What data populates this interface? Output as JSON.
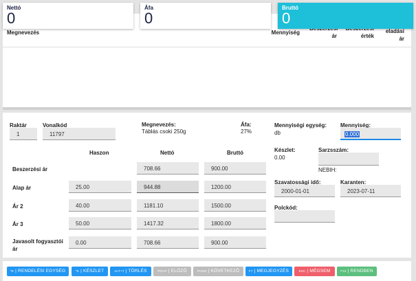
{
  "summary": {
    "netto_label": "Nettó",
    "netto_value": "0",
    "afa_label": "Áfa",
    "afa_value": "0",
    "brutto_label": "Bruttó",
    "brutto_value": "0",
    "accent_color": "#1ebfd9"
  },
  "table": {
    "headers": [
      "Megnevezés",
      "Mennyiség",
      "Beszerzési ár",
      "Beszerzési érték",
      "eladási ár"
    ]
  },
  "form": {
    "raktar_label": "Raktár",
    "raktar_value": "1",
    "vonalkod_label": "Vonalkód",
    "vonalkod_value": "11797",
    "megnevezes_label": "Megnevezés:",
    "megnevezes_value": "Táblás csoki 250g",
    "afa_label": "Áfa:",
    "afa_value": "27%",
    "col_haszon": "Haszon",
    "col_netto": "Nettó",
    "col_brutto": "Bruttó",
    "rows": [
      {
        "label": "Beszerzési ár",
        "haszon": null,
        "netto": "708.66",
        "brutto": "900.00"
      },
      {
        "label": "Alap ár",
        "haszon": "25.00",
        "netto": "944.88",
        "brutto": "1200.00"
      },
      {
        "label": "Ár 2",
        "haszon": "40.00",
        "netto": "1181.10",
        "brutto": "1500.00"
      },
      {
        "label": "Ár 3",
        "haszon": "50.00",
        "netto": "1417.32",
        "brutto": "1800.00"
      },
      {
        "label": "Javasolt fogyasztói ár",
        "haszon": "0.00",
        "netto": "708.66",
        "brutto": "900.00"
      }
    ],
    "mennyisegi_egyseg_label": "Mennyiségi egység:",
    "mennyisegi_egyseg_value": "db",
    "mennyiseg_label": "Mennyiség:",
    "mennyiseg_value": "0.000",
    "keszlet_label": "Készlet:",
    "keszlet_value": "0.00",
    "sarzsszam_label": "Sarzsszám:",
    "sarzsszam_value": "",
    "nebih_label": "NEBIH:",
    "szavatossagi_label": "Szavatossági idő:",
    "szavatossagi_value": "2000-01-01",
    "karanten_label": "Karanten:",
    "karanten_value": "2023-07-11",
    "polckod_label": "Polckód:",
    "polckod_value": ""
  },
  "buttons": [
    {
      "key": "^E",
      "label": "RENDELÉSI EGYSÉG",
      "color": "#2196f3"
    },
    {
      "key": "^K",
      "label": "KÉSZLET",
      "color": "#2196f3"
    },
    {
      "key": "ALT+T",
      "label": "TÖRLÉS",
      "color": "#2196f3"
    },
    {
      "key": "PGUP",
      "label": "ELŐZŐ",
      "color": "#bdbdbd"
    },
    {
      "key": "PGDN",
      "label": "KÖVETKEZŐ",
      "color": "#bdbdbd"
    },
    {
      "key": "F7",
      "label": "MEGJEGYZÉS",
      "color": "#2196f3"
    },
    {
      "key": "ESC",
      "label": "MÉGSEM",
      "color": "#ef5f6b"
    },
    {
      "key": "F10",
      "label": "RENDBEN",
      "color": "#5cbf7e"
    }
  ]
}
